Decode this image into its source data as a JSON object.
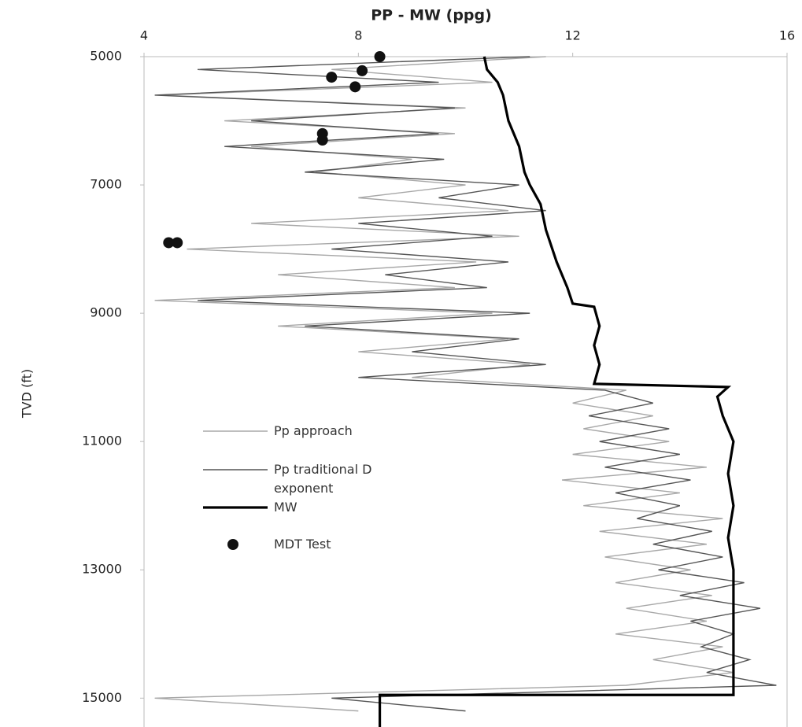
{
  "chart_data": {
    "type": "line",
    "title": "PP - MW (ppg)",
    "ylabel": "TVD (ft)",
    "xlim": [
      4,
      16
    ],
    "xticks": [
      4,
      8,
      12,
      16
    ],
    "ylim": [
      5000,
      15450
    ],
    "yticks": [
      5000,
      7000,
      9000,
      11000,
      13000,
      15000
    ],
    "y_inverted": true,
    "series": [
      {
        "name": "Pp approach",
        "kind": "line",
        "color": "#a8a8a8",
        "width": 1.4,
        "y": [
          5000,
          5200,
          5400,
          5600,
          5800,
          6000,
          6200,
          6400,
          6600,
          6800,
          7000,
          7200,
          7400,
          7600,
          7800,
          8000,
          8200,
          8400,
          8600,
          8800,
          9000,
          9200,
          9400,
          9600,
          9800,
          10000,
          10200,
          10400,
          10600,
          10800,
          11000,
          11200,
          11400,
          11600,
          11800,
          12000,
          12200,
          12400,
          12600,
          12800,
          13000,
          13200,
          13400,
          13600,
          13800,
          14000,
          14200,
          14400,
          14600,
          14800,
          15000,
          15200
        ],
        "x": [
          11.5,
          7.5,
          10.5,
          4.3,
          10.0,
          5.5,
          9.8,
          6.0,
          9.0,
          7.2,
          10.0,
          8.0,
          10.8,
          6.0,
          11.0,
          4.8,
          10.2,
          6.5,
          9.8,
          4.2,
          10.5,
          6.5,
          10.8,
          8.0,
          11.2,
          9.0,
          13.0,
          12.0,
          13.5,
          12.2,
          13.8,
          12.0,
          14.5,
          11.8,
          14.0,
          12.2,
          14.8,
          12.5,
          14.5,
          12.6,
          14.2,
          12.8,
          14.6,
          13.0,
          14.5,
          12.8,
          14.8,
          13.5,
          15.0,
          13.0,
          4.2,
          8.0
        ]
      },
      {
        "name": "Pp traditional D exponent",
        "kind": "line",
        "color": "#555555",
        "width": 1.4,
        "y": [
          5000,
          5200,
          5400,
          5600,
          5800,
          6000,
          6200,
          6400,
          6600,
          6800,
          7000,
          7200,
          7400,
          7600,
          7800,
          8000,
          8200,
          8400,
          8600,
          8800,
          9000,
          9200,
          9400,
          9600,
          9800,
          10000,
          10200,
          10400,
          10600,
          10800,
          11000,
          11200,
          11400,
          11600,
          11800,
          12000,
          12200,
          12400,
          12600,
          12800,
          13000,
          13200,
          13400,
          13600,
          13800,
          14000,
          14200,
          14400,
          14600,
          14800,
          15000,
          15200
        ],
        "x": [
          11.2,
          5.0,
          9.5,
          4.2,
          9.8,
          6.0,
          9.5,
          5.5,
          9.6,
          7.0,
          11.0,
          9.5,
          11.5,
          8.0,
          10.5,
          7.5,
          10.8,
          8.5,
          10.4,
          5.0,
          11.2,
          7.0,
          11.0,
          9.0,
          11.5,
          8.0,
          12.6,
          13.5,
          12.3,
          13.8,
          12.5,
          14.0,
          12.6,
          14.2,
          12.8,
          14.0,
          13.2,
          14.6,
          13.5,
          14.8,
          13.6,
          15.2,
          14.0,
          15.5,
          14.2,
          15.0,
          14.4,
          15.3,
          14.5,
          15.8,
          7.5,
          10.0
        ]
      },
      {
        "name": "MW",
        "kind": "line",
        "color": "#000000",
        "width": 3.2,
        "y": [
          5000,
          5200,
          5400,
          5600,
          6000,
          6400,
          6800,
          7000,
          7300,
          7700,
          8200,
          8600,
          8850,
          8900,
          9200,
          9500,
          9800,
          10100,
          10150,
          10300,
          10600,
          11000,
          11500,
          12000,
          12500,
          13000,
          14000,
          14950,
          14950,
          15450
        ],
        "x": [
          10.35,
          10.4,
          10.6,
          10.7,
          10.8,
          11.0,
          11.1,
          11.2,
          11.4,
          11.5,
          11.7,
          11.9,
          12.0,
          12.4,
          12.5,
          12.4,
          12.5,
          12.4,
          14.9,
          14.7,
          14.8,
          15.0,
          14.9,
          15.0,
          14.9,
          15.0,
          15.0,
          15.0,
          8.4,
          8.4
        ]
      },
      {
        "name": "MDT Test",
        "kind": "scatter",
        "color": "#111111",
        "y": [
          5000,
          5220,
          5320,
          5470,
          6200,
          6300,
          7900,
          7900
        ],
        "x": [
          8.4,
          8.07,
          7.5,
          7.94,
          7.33,
          7.33,
          4.46,
          4.62
        ]
      }
    ]
  }
}
